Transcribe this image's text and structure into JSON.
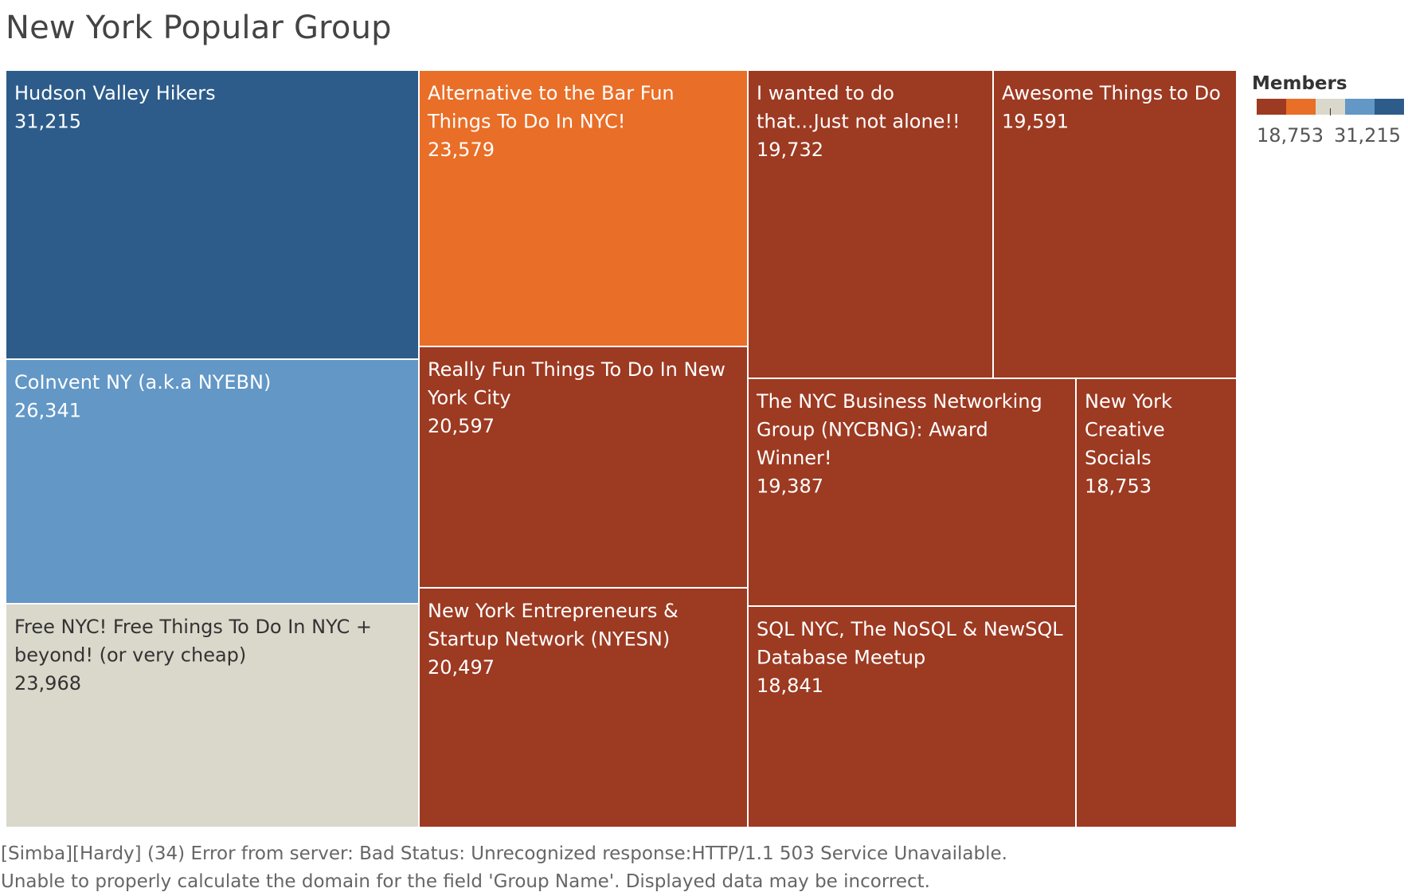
{
  "chart_data": {
    "type": "treemap",
    "title": "New York Popular Group",
    "size_measure": "Members",
    "color_measure": "Members",
    "items": [
      {
        "name": "Hudson Valley Hikers",
        "value": 31215,
        "label": "31,215",
        "color": "#2d5c8a"
      },
      {
        "name": "CoInvent NY (a.k.a NYEBN)",
        "value": 26341,
        "label": "26,341",
        "color": "#6297c6"
      },
      {
        "name": "Free NYC! Free Things To Do In NYC + beyond! (or very cheap)",
        "value": 23968,
        "label": "23,968",
        "color": "#dad7cb"
      },
      {
        "name": "Alternative to the Bar Fun Things To Do In NYC!",
        "value": 23579,
        "label": "23,579",
        "color": "#e96e27"
      },
      {
        "name": "Really Fun Things To Do In New York City",
        "value": 20597,
        "label": "20,597",
        "color": "#9d3a22"
      },
      {
        "name": "New York Entrepreneurs & Startup Network (NYESN)",
        "value": 20497,
        "label": "20,497",
        "color": "#9d3a22"
      },
      {
        "name": "I wanted to do that...Just not alone!!",
        "value": 19732,
        "label": "19,732",
        "color": "#9d3a22"
      },
      {
        "name": "Awesome Things to Do",
        "value": 19591,
        "label": "19,591",
        "color": "#9d3a22"
      },
      {
        "name": "The NYC Business Networking Group (NYCBNG): Award Winner!",
        "value": 19387,
        "label": "19,387",
        "color": "#9d3a22"
      },
      {
        "name": "New York Creative Socials",
        "value": 18753,
        "label": "18,753",
        "color": "#9d3a22"
      },
      {
        "name": "SQL NYC, The NoSQL & NewSQL Database Meetup",
        "value": 18841,
        "label": "18,841",
        "color": "#9d3a22"
      }
    ],
    "legend": {
      "title": "Members",
      "min_label": "18,753",
      "max_label": "31,215",
      "colors": [
        "#9d3a22",
        "#e96e27",
        "#dad7cb",
        "#6297c6",
        "#2d5c8a"
      ]
    }
  },
  "footer": {
    "line1": "[Simba][Hardy] (34) Error from server: Bad Status: Unrecognized response:HTTP/1.1 503 Service Unavailable.",
    "line2": "Unable to properly calculate the domain for the field 'Group Name'. Displayed data may be incorrect."
  }
}
